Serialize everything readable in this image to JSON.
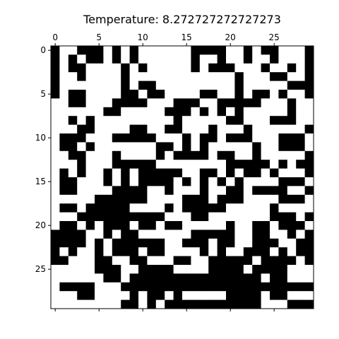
{
  "chart_data": {
    "type": "heatmap",
    "title": "Temperature: 8.272727272727273",
    "xlabel": "",
    "ylabel": "",
    "x_axis_position": "top",
    "x_ticks": [
      0,
      5,
      10,
      15,
      20,
      25
    ],
    "y_ticks": [
      0,
      5,
      10,
      15,
      20,
      25
    ],
    "xlim": [
      -0.5,
      29.5
    ],
    "ylim": [
      29.5,
      -0.5
    ],
    "grid": false,
    "colormap": "binary",
    "colors": {
      "black": "#000000",
      "white": "#ffffff"
    },
    "grid_size": [
      30,
      30
    ],
    "values": [
      "100111010100000011110010110001",
      "101011010100000010010010010001",
      "101100001010000010111000100101",
      "100100001000000000000100011001",
      "100000001011000000000100000111",
      "101100001101100001100101101001",
      "001100011110001110011111000100",
      "000000110000011101010100000100",
      "001010000000001000001100011100",
      "000110000110011000100010000001",
      "011100011111000101101110001110",
      "011010000000110101000001001110",
      "001100010000101111011001000001",
      "000100011111000000001111101011",
      "010100101011111001101011010001",
      "011000101011110101010100001110",
      "011000011110010001001101111001",
      "000001111110000111011100001110",
      "011011111000010111110000010000",
      "000111111111100011000000011101",
      "011010111011011000001001101110",
      "111100101100000011111001100101",
      "111101011111100111011001110011",
      "101001011101100001010011101011",
      "110001100110001100111110111101",
      "000001110011110000111101111000",
      "000000110111111111111111011000",
      "011110001111111111111111111111",
      "000110000101101000001111011000",
      "000000001101011111111111000111"
    ]
  }
}
